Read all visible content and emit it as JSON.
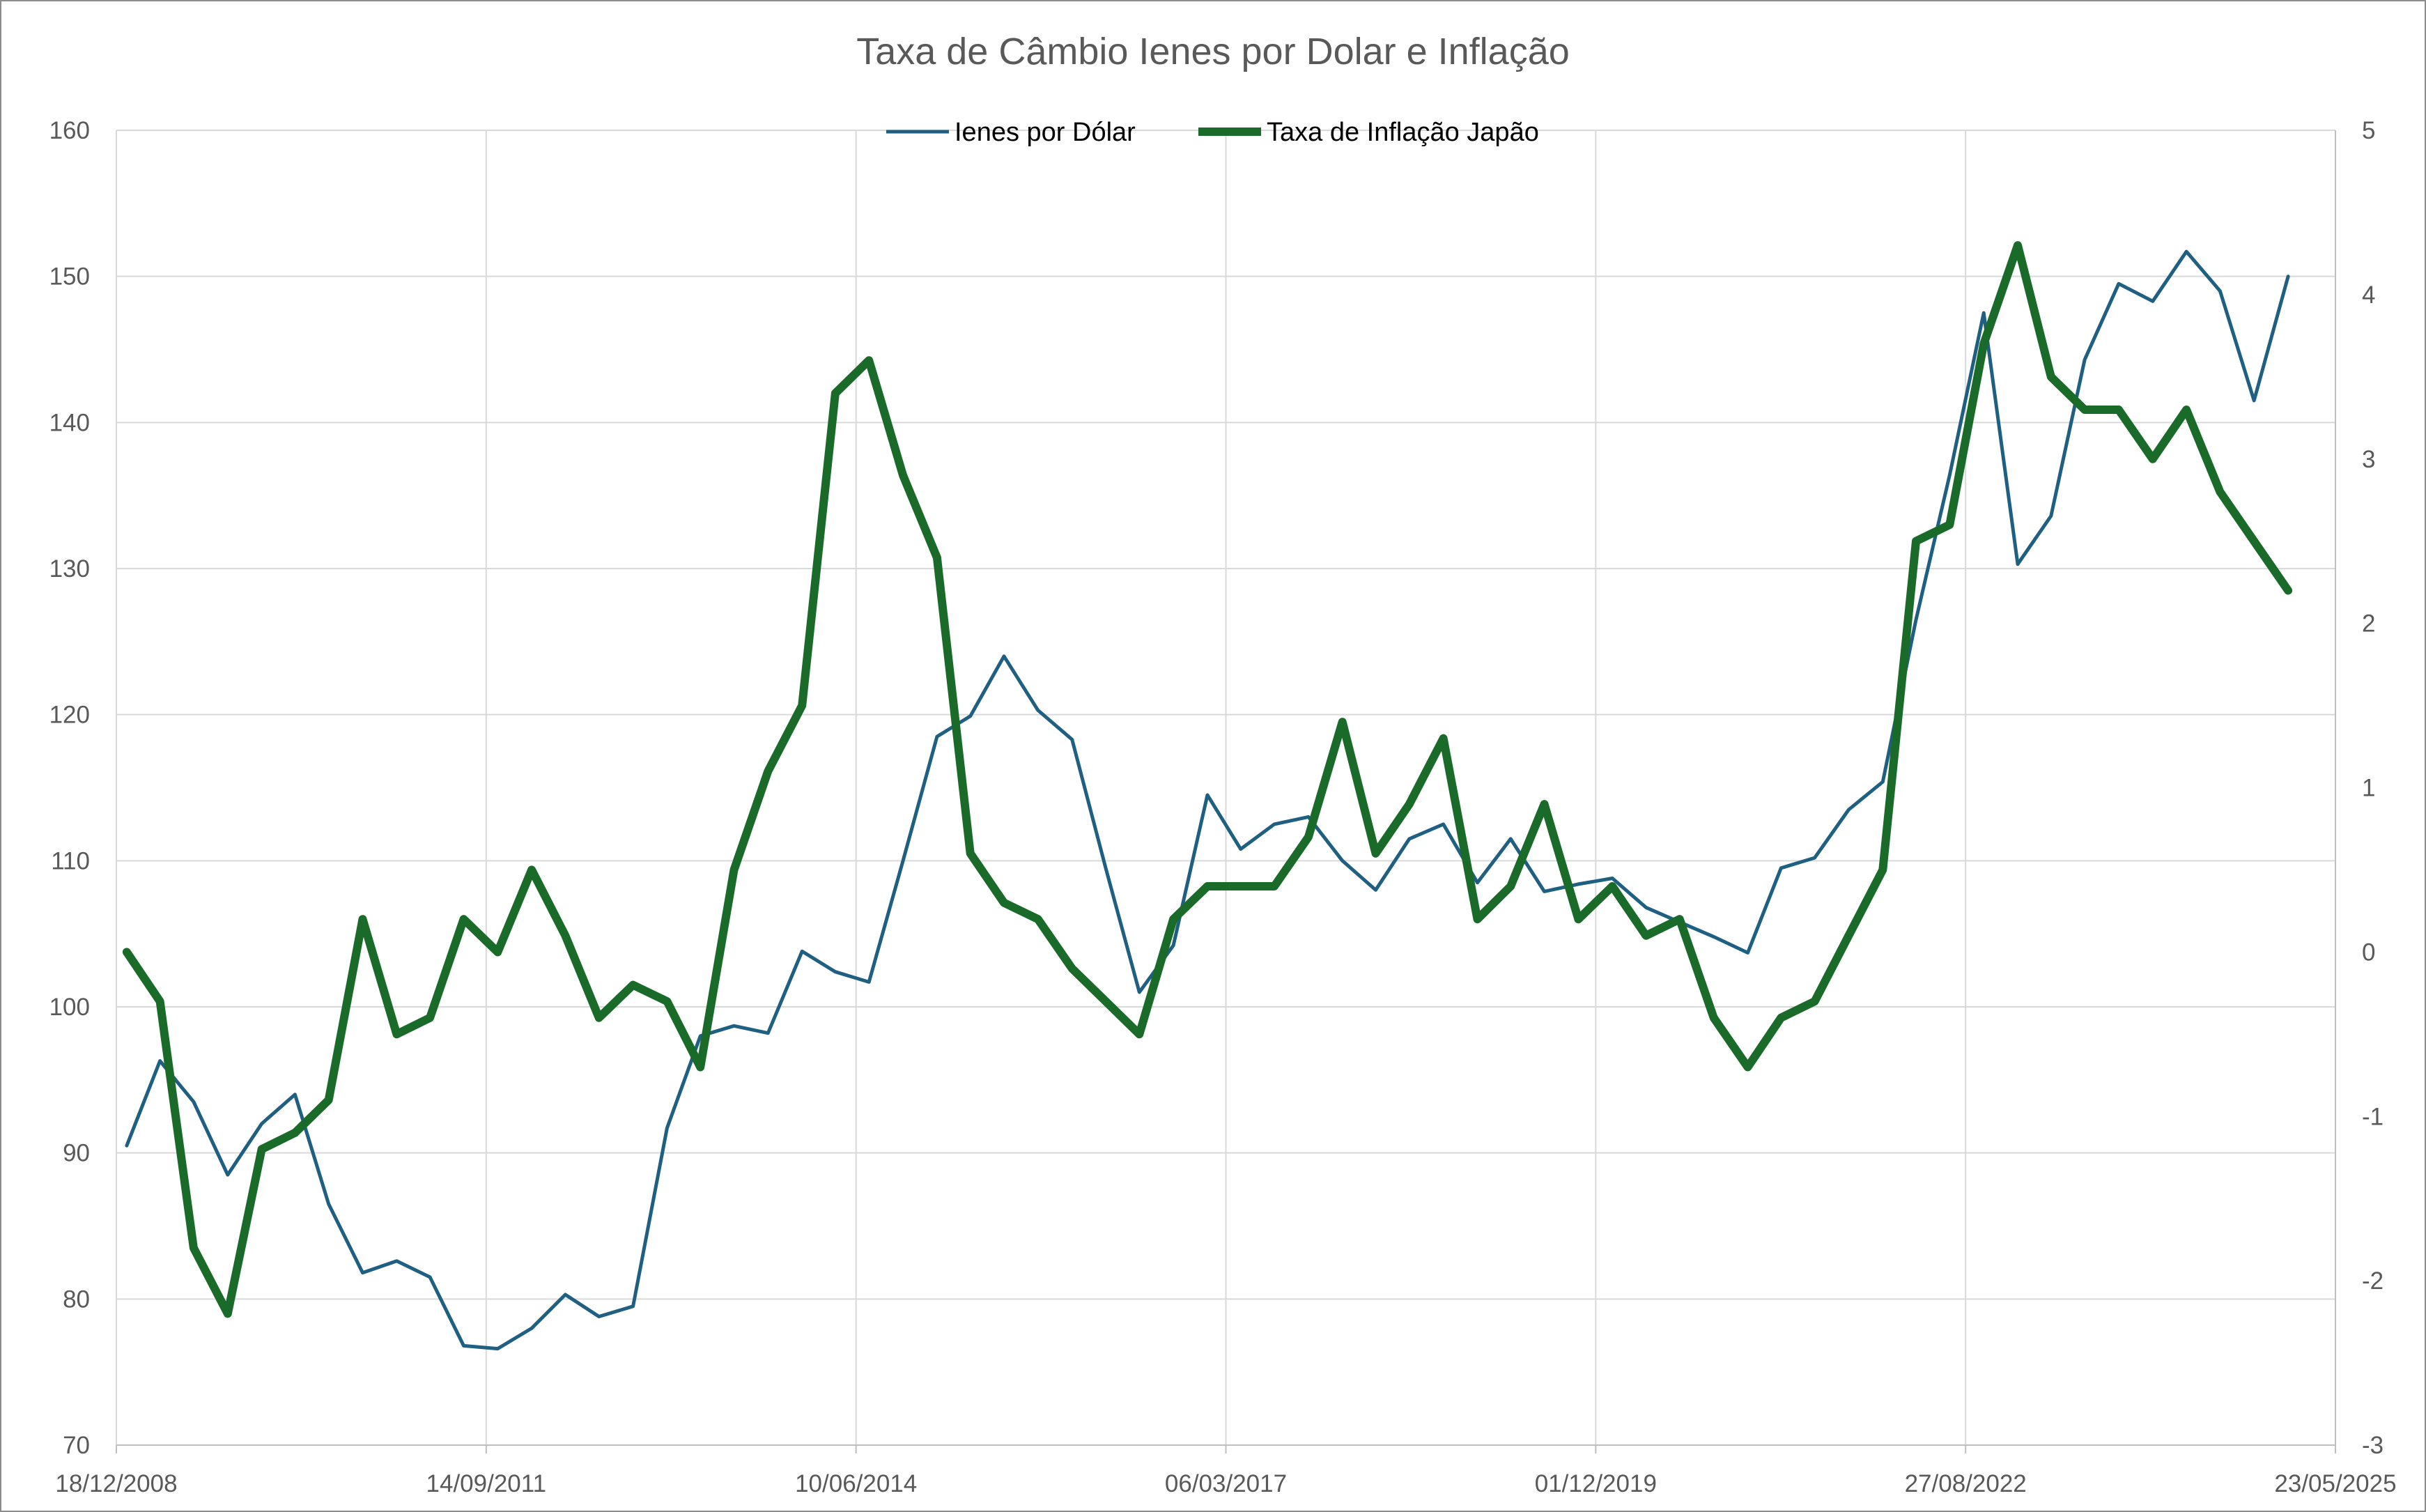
{
  "chart_data": {
    "type": "line",
    "title": "Taxa de Câmbio Ienes por Dolar e Inflação",
    "xlabel": "",
    "ylabel": "",
    "x_tick_labels": [
      "18/12/2008",
      "14/09/2011",
      "10/06/2014",
      "06/03/2017",
      "01/12/2019",
      "27/08/2022",
      "23/05/2025"
    ],
    "xlim": [
      "2008-12-18",
      "2025-05-23"
    ],
    "y_left": {
      "ylim": [
        70,
        160
      ],
      "ticks": [
        "70",
        "80",
        "90",
        "100",
        "110",
        "120",
        "130",
        "140",
        "150",
        "160"
      ]
    },
    "y_right": {
      "ylim": [
        -3,
        5
      ],
      "ticks": [
        "-3",
        "-2",
        "-1",
        "0",
        "1",
        "2",
        "3",
        "4",
        "5"
      ]
    },
    "grid": true,
    "legend_position": "top",
    "series": [
      {
        "name": "Ienes por Dólar",
        "axis": "left",
        "color": "#1f5f82",
        "x": [
          "2009-01",
          "2009-04",
          "2009-07",
          "2009-10",
          "2010-01",
          "2010-04",
          "2010-07",
          "2010-10",
          "2011-01",
          "2011-04",
          "2011-07",
          "2011-10",
          "2012-01",
          "2012-04",
          "2012-07",
          "2012-10",
          "2013-01",
          "2013-04",
          "2013-07",
          "2013-10",
          "2014-01",
          "2014-04",
          "2014-07",
          "2014-10",
          "2015-01",
          "2015-04",
          "2015-07",
          "2015-10",
          "2016-01",
          "2016-04",
          "2016-07",
          "2016-10",
          "2017-01",
          "2017-04",
          "2017-07",
          "2017-10",
          "2018-01",
          "2018-04",
          "2018-07",
          "2018-10",
          "2019-01",
          "2019-04",
          "2019-07",
          "2019-10",
          "2020-01",
          "2020-04",
          "2020-07",
          "2020-10",
          "2021-01",
          "2021-04",
          "2021-07",
          "2021-10",
          "2022-01",
          "2022-04",
          "2022-07",
          "2022-10",
          "2023-01",
          "2023-04",
          "2023-07",
          "2023-10",
          "2024-01",
          "2024-04",
          "2024-07",
          "2024-10",
          "2025-01"
        ],
        "values": [
          90.5,
          96.3,
          93.5,
          88.5,
          92.0,
          94.0,
          86.5,
          81.8,
          82.6,
          81.5,
          76.8,
          76.6,
          78.0,
          80.3,
          78.8,
          79.5,
          91.7,
          98.0,
          98.7,
          98.2,
          103.8,
          102.4,
          101.7,
          110.0,
          118.5,
          119.9,
          124.0,
          120.3,
          118.3,
          109.5,
          101.0,
          104.2,
          114.5,
          110.8,
          112.5,
          113.0,
          110.0,
          108.0,
          111.5,
          112.5,
          108.5,
          111.5,
          107.9,
          108.4,
          108.8,
          106.8,
          105.8,
          104.8,
          103.7,
          109.5,
          110.2,
          113.5,
          115.4,
          126.5,
          136.4,
          147.5,
          130.3,
          133.6,
          144.3,
          149.5,
          148.3,
          151.7,
          149.0,
          141.5,
          150.0
        ]
      },
      {
        "name": "Taxa de Inflação Japão",
        "axis": "right",
        "color": "#1a6b2a",
        "x": [
          "2009-01",
          "2009-04",
          "2009-07",
          "2009-10",
          "2010-01",
          "2010-04",
          "2010-07",
          "2010-10",
          "2011-01",
          "2011-04",
          "2011-07",
          "2011-10",
          "2012-01",
          "2012-04",
          "2012-07",
          "2012-10",
          "2013-01",
          "2013-04",
          "2013-07",
          "2013-10",
          "2014-01",
          "2014-04",
          "2014-07",
          "2014-10",
          "2015-01",
          "2015-04",
          "2015-07",
          "2015-10",
          "2016-01",
          "2016-04",
          "2016-07",
          "2016-10",
          "2017-01",
          "2017-04",
          "2017-07",
          "2017-10",
          "2018-01",
          "2018-04",
          "2018-07",
          "2018-10",
          "2019-01",
          "2019-04",
          "2019-07",
          "2019-10",
          "2020-01",
          "2020-04",
          "2020-07",
          "2020-10",
          "2021-01",
          "2021-04",
          "2021-07",
          "2021-10",
          "2022-01",
          "2022-04",
          "2022-07",
          "2022-10",
          "2023-01",
          "2023-04",
          "2023-07",
          "2023-10",
          "2024-01",
          "2024-04",
          "2024-07",
          "2024-10",
          "2025-01"
        ],
        "values": [
          0.0,
          -0.3,
          -1.8,
          -2.2,
          -1.2,
          -1.1,
          -0.9,
          0.2,
          -0.5,
          -0.4,
          0.2,
          0.0,
          0.5,
          0.1,
          -0.4,
          -0.2,
          -0.3,
          -0.7,
          0.5,
          1.1,
          1.5,
          3.4,
          3.6,
          2.9,
          2.4,
          0.6,
          0.3,
          0.2,
          -0.1,
          -0.3,
          -0.5,
          0.2,
          0.4,
          0.4,
          0.4,
          0.7,
          1.4,
          0.6,
          0.9,
          1.3,
          0.2,
          0.4,
          0.9,
          0.2,
          0.4,
          0.1,
          0.2,
          -0.4,
          -0.7,
          -0.4,
          -0.3,
          0.1,
          0.5,
          2.5,
          2.6,
          3.7,
          4.3,
          3.5,
          3.3,
          3.3,
          3.0,
          3.3,
          2.8,
          2.5,
          2.2
        ]
      }
    ]
  }
}
